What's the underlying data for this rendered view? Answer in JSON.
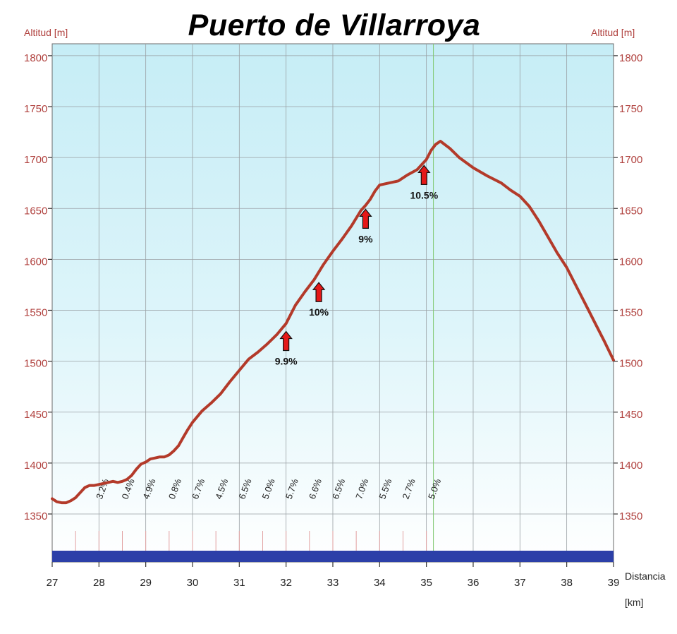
{
  "title": "Puerto de Villarroya",
  "colors": {
    "axis_text": "#b0413e",
    "profile_line": "#b33a2a",
    "plot_bg_top": "#c6edf6",
    "plot_bg_bottom": "#ffffff",
    "grid": "#9aa0a4",
    "base_band": "#2c3fa8",
    "arrow_fill": "#e51818",
    "summit_line": "#80c870"
  },
  "chart_data": {
    "type": "line",
    "title": "Puerto de Villarroya",
    "ylabel_left": "Altitud [m]",
    "ylabel_right": "Altitud [m]",
    "xlabel": "Distancia",
    "xunit": "[km]",
    "xlim": [
      27,
      39
    ],
    "ylim": [
      1320,
      1820
    ],
    "x_ticks": [
      27,
      28,
      29,
      30,
      31,
      32,
      33,
      34,
      35,
      36,
      37,
      38,
      39
    ],
    "y_ticks": [
      1350,
      1400,
      1450,
      1500,
      1550,
      1600,
      1650,
      1700,
      1750,
      1800
    ],
    "grid": true,
    "series": [
      {
        "x": [
          27.0,
          27.1,
          27.2,
          27.3,
          27.4,
          27.5,
          27.6,
          27.7,
          27.8,
          27.9,
          28.0,
          28.2,
          28.3,
          28.4,
          28.5,
          28.6,
          28.7,
          28.8,
          28.9,
          29.0,
          29.1,
          29.2,
          29.3,
          29.4,
          29.5,
          29.6,
          29.7,
          29.8,
          29.9,
          30.0,
          30.2,
          30.4,
          30.6,
          30.8,
          31.0,
          31.2,
          31.4,
          31.6,
          31.8,
          32.0,
          32.2,
          32.4,
          32.6,
          32.8,
          33.0,
          33.2,
          33.4,
          33.6,
          33.7,
          33.8,
          33.9,
          34.0,
          34.2,
          34.4,
          34.6,
          34.8,
          35.0,
          35.1,
          35.2,
          35.3,
          35.5,
          35.7,
          36.0,
          36.3,
          36.6,
          36.8,
          37.0,
          37.2,
          37.4,
          37.6,
          37.8,
          38.0,
          38.2,
          38.4,
          38.6,
          38.8,
          39.0
        ],
        "y": [
          1365,
          1362,
          1361,
          1361,
          1363,
          1366,
          1371,
          1376,
          1378,
          1378,
          1379,
          1381,
          1382,
          1381,
          1382,
          1384,
          1388,
          1394,
          1399,
          1401,
          1404,
          1405,
          1406,
          1406,
          1408,
          1412,
          1417,
          1425,
          1433,
          1440,
          1451,
          1459,
          1468,
          1480,
          1491,
          1502,
          1509,
          1517,
          1526,
          1537,
          1555,
          1568,
          1580,
          1595,
          1608,
          1620,
          1633,
          1648,
          1653,
          1659,
          1667,
          1673,
          1675,
          1677,
          1683,
          1688,
          1698,
          1707,
          1713,
          1716,
          1709,
          1700,
          1690,
          1682,
          1675,
          1668,
          1662,
          1652,
          1638,
          1622,
          1606,
          1592,
          1574,
          1556,
          1538,
          1520,
          1501
        ]
      }
    ],
    "segment_gradients": [
      {
        "x": 28.0,
        "label": "3.2%"
      },
      {
        "x": 28.55,
        "label": "0.4%"
      },
      {
        "x": 29.0,
        "label": "4.9%"
      },
      {
        "x": 29.55,
        "label": "0.8%"
      },
      {
        "x": 30.05,
        "label": "6.7%"
      },
      {
        "x": 30.55,
        "label": "4.5%"
      },
      {
        "x": 31.05,
        "label": "6.5%"
      },
      {
        "x": 31.55,
        "label": "5.0%"
      },
      {
        "x": 32.05,
        "label": "5.7%"
      },
      {
        "x": 32.55,
        "label": "6.6%"
      },
      {
        "x": 33.05,
        "label": "6.5%"
      },
      {
        "x": 33.55,
        "label": "7.0%"
      },
      {
        "x": 34.05,
        "label": "5.5%"
      },
      {
        "x": 34.55,
        "label": "2.7%"
      },
      {
        "x": 35.1,
        "label": "5.0%"
      }
    ],
    "segment_markers": [
      27.5,
      28.0,
      28.5,
      29.0,
      29.5,
      30.0,
      30.5,
      31.0,
      31.5,
      32.0,
      32.5,
      33.0,
      33.5,
      34.0,
      34.5,
      35.0
    ],
    "summit_x": 35.15,
    "annotations": [
      {
        "x": 32.0,
        "y": 1532,
        "label": "9.9%"
      },
      {
        "x": 32.7,
        "y": 1580,
        "label": "10%"
      },
      {
        "x": 33.7,
        "y": 1652,
        "label": "9%"
      },
      {
        "x": 34.95,
        "y": 1695,
        "label": "10.5%"
      }
    ]
  }
}
